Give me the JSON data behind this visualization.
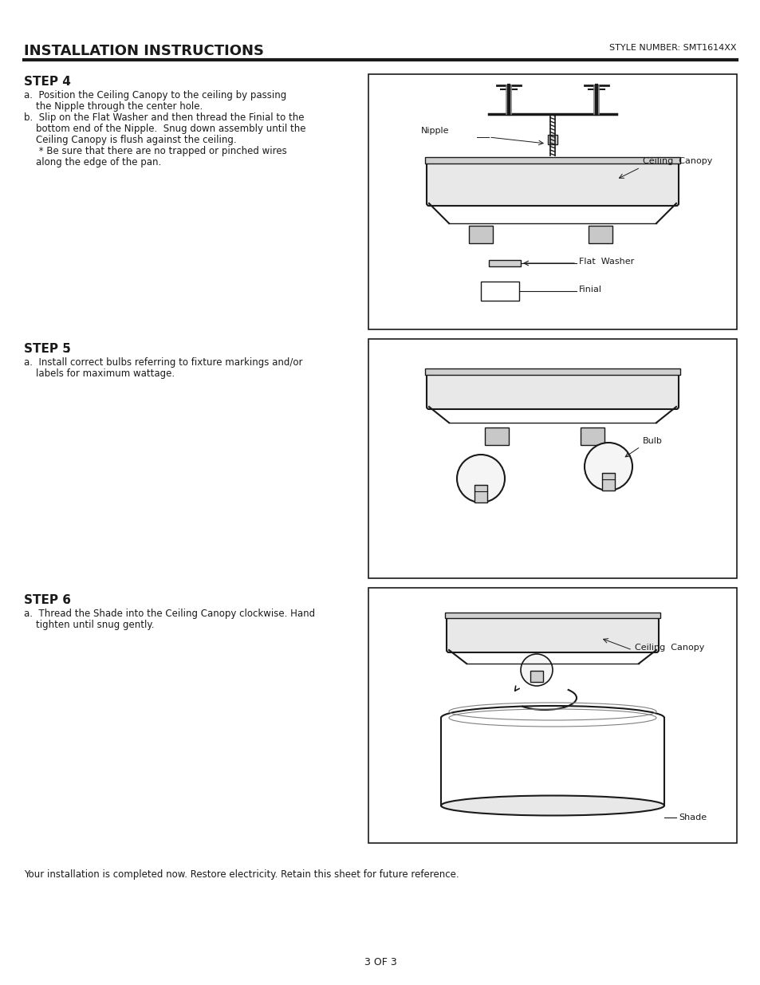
{
  "title": "INSTALLATION INSTRUCTIONS",
  "style_number": "STYLE NUMBER: SMT1614XX",
  "background_color": "#ffffff",
  "text_color": "#1a1a1a",
  "line_color": "#1a1a1a",
  "step4_title": "STEP 4:",
  "step4_lines": [
    "a.  Position the Ceiling Canopy to the ceiling by passing",
    "    the Nipple through the center hole.",
    "b.  Slip on the Flat Washer and then thread the Finial to the",
    "    bottom end of the Nipple.  Snug down assembly until the",
    "    Ceiling Canopy is flush against the ceiling.",
    "     * Be sure that there are no trapped or pinched wires",
    "    along the edge of the pan."
  ],
  "step5_title": "STEP 5:",
  "step5_lines": [
    "a.  Install correct bulbs referring to fixture markings and/or",
    "    labels for maximum wattage."
  ],
  "step6_title": "STEP 6:",
  "step6_lines": [
    "a.  Thread the Shade into the Ceiling Canopy clockwise. Hand",
    "    tighten until snug gently."
  ],
  "footer": "Your installation is completed now. Restore electricity. Retain this sheet for future reference.",
  "page": "3 OF 3"
}
